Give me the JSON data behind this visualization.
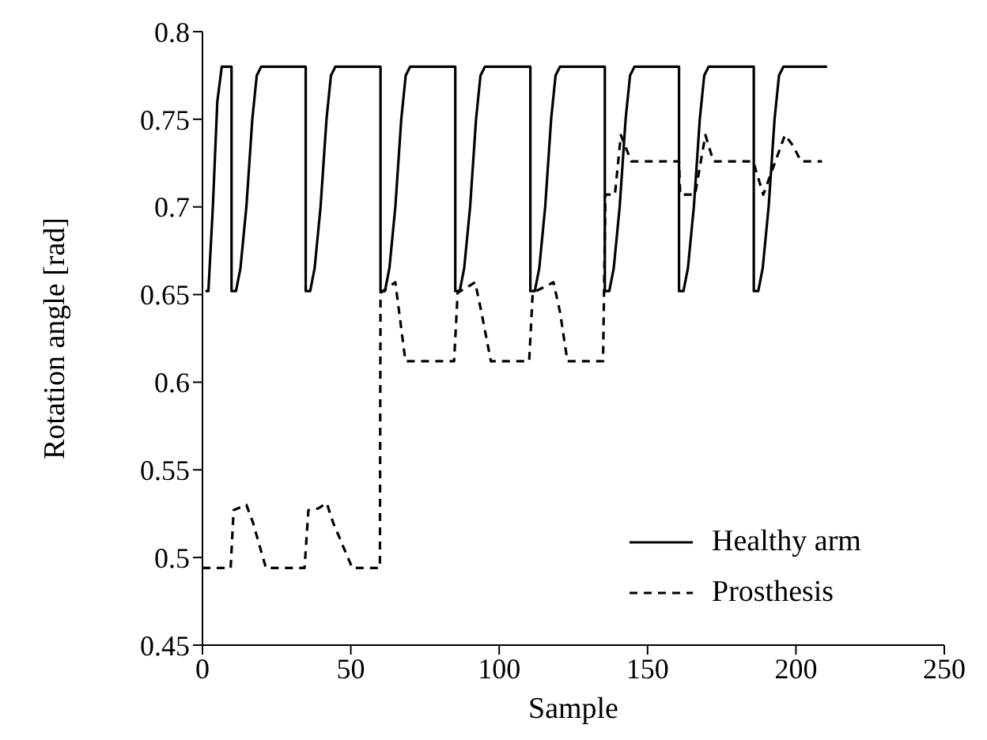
{
  "chart_data": {
    "type": "line",
    "xlabel": "Sample",
    "ylabel": "Rotation angle [rad]",
    "xlim": [
      0,
      250
    ],
    "xticks": [
      0,
      50,
      100,
      150,
      200,
      250
    ],
    "ylim": [
      0.45,
      0.8
    ],
    "yticks": [
      0.45,
      0.5,
      0.55,
      0.6,
      0.65,
      0.7,
      0.75,
      0.8
    ],
    "grid": false,
    "legend": "bottom right",
    "marker": "none",
    "series": [
      {
        "name": "Healthy arm",
        "color": "#000000",
        "line_style": "solid",
        "x": [
          1,
          2,
          3.5,
          5,
          6.5,
          9.8,
          9.8,
          11.3,
          12.8,
          14.8,
          16.8,
          18.3,
          19.8,
          34.8,
          34.8,
          36.3,
          37.8,
          39.8,
          41.8,
          43.3,
          44.8,
          60,
          60,
          61.5,
          63,
          65,
          67,
          68.5,
          70,
          85.2,
          85.2,
          86.7,
          88.2,
          90.2,
          92.2,
          93.7,
          95.2,
          110.5,
          110.5,
          112,
          113.5,
          115.5,
          117.5,
          119,
          120.5,
          135.6,
          135.6,
          137.1,
          138.6,
          140.6,
          142.6,
          144.1,
          145.6,
          160.6,
          160.6,
          162.1,
          163.6,
          165.6,
          167.6,
          169.1,
          170.6,
          185.8,
          185.8,
          187.3,
          188.8,
          190.8,
          192.8,
          194.3,
          195.8,
          210.5
        ],
        "values": [
          0.652,
          0.652,
          0.7,
          0.76,
          0.78,
          0.78,
          0.652,
          0.652,
          0.665,
          0.7,
          0.75,
          0.775,
          0.78,
          0.78,
          0.652,
          0.652,
          0.665,
          0.7,
          0.75,
          0.775,
          0.78,
          0.78,
          0.652,
          0.652,
          0.665,
          0.7,
          0.75,
          0.775,
          0.78,
          0.78,
          0.652,
          0.652,
          0.665,
          0.7,
          0.75,
          0.775,
          0.78,
          0.78,
          0.652,
          0.652,
          0.665,
          0.7,
          0.75,
          0.775,
          0.78,
          0.78,
          0.652,
          0.652,
          0.665,
          0.7,
          0.75,
          0.775,
          0.78,
          0.78,
          0.652,
          0.652,
          0.665,
          0.7,
          0.75,
          0.775,
          0.78,
          0.78,
          0.652,
          0.652,
          0.665,
          0.7,
          0.75,
          0.775,
          0.78,
          0.78
        ]
      },
      {
        "name": "Prosthesis",
        "color": "#000000",
        "line_style": "dashed",
        "x": [
          0,
          9.5,
          10.5,
          14.8,
          17,
          21.4,
          34.4,
          35.7,
          39,
          41.9,
          44,
          50.5,
          59.8,
          60,
          65,
          68.4,
          84.8,
          86,
          91.9,
          94,
          97.2,
          110.1,
          111.3,
          118.3,
          120.5,
          123,
          135,
          135.8,
          139,
          141,
          144.5,
          160.6,
          161,
          166,
          169.5,
          172.2,
          185.6,
          189,
          196.3,
          199,
          201.7,
          208.8
        ],
        "values": [
          0.494,
          0.494,
          0.527,
          0.53,
          0.52,
          0.494,
          0.494,
          0.527,
          0.528,
          0.531,
          0.52,
          0.494,
          0.494,
          0.651,
          0.657,
          0.612,
          0.612,
          0.651,
          0.657,
          0.64,
          0.612,
          0.612,
          0.651,
          0.657,
          0.64,
          0.612,
          0.612,
          0.707,
          0.707,
          0.741,
          0.726,
          0.726,
          0.707,
          0.707,
          0.741,
          0.726,
          0.726,
          0.707,
          0.741,
          0.735,
          0.726,
          0.726
        ]
      }
    ]
  }
}
